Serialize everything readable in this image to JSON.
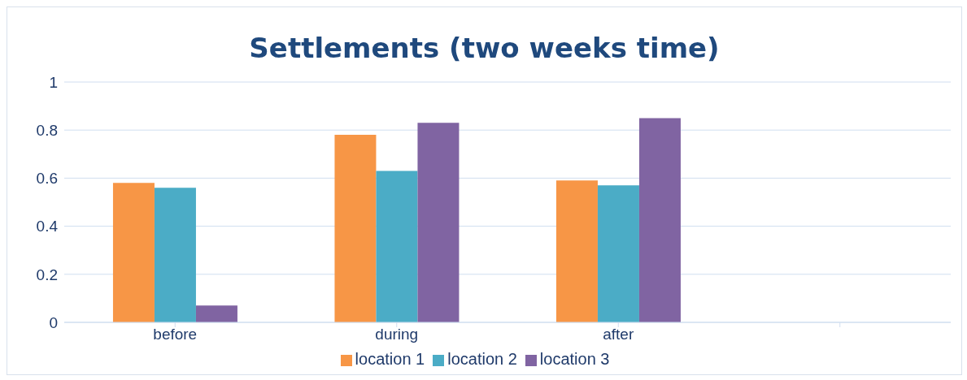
{
  "chart_data": {
    "type": "bar",
    "title": "Settlements (two weeks time)",
    "categories": [
      "before",
      "during",
      "after",
      null
    ],
    "series": [
      {
        "name": "location 1",
        "color": "#f79646",
        "values": [
          0.58,
          0.78,
          0.59,
          null
        ]
      },
      {
        "name": "location 2",
        "color": "#4bacc6",
        "values": [
          0.56,
          0.63,
          0.57,
          null
        ]
      },
      {
        "name": "location 3",
        "color": "#8064a2",
        "values": [
          0.07,
          0.83,
          0.85,
          null
        ]
      }
    ],
    "ylim": [
      0,
      1
    ],
    "yticks": [
      0,
      0.2,
      0.4,
      0.6,
      0.8,
      1
    ],
    "grid": "y",
    "legend": "bottom"
  }
}
